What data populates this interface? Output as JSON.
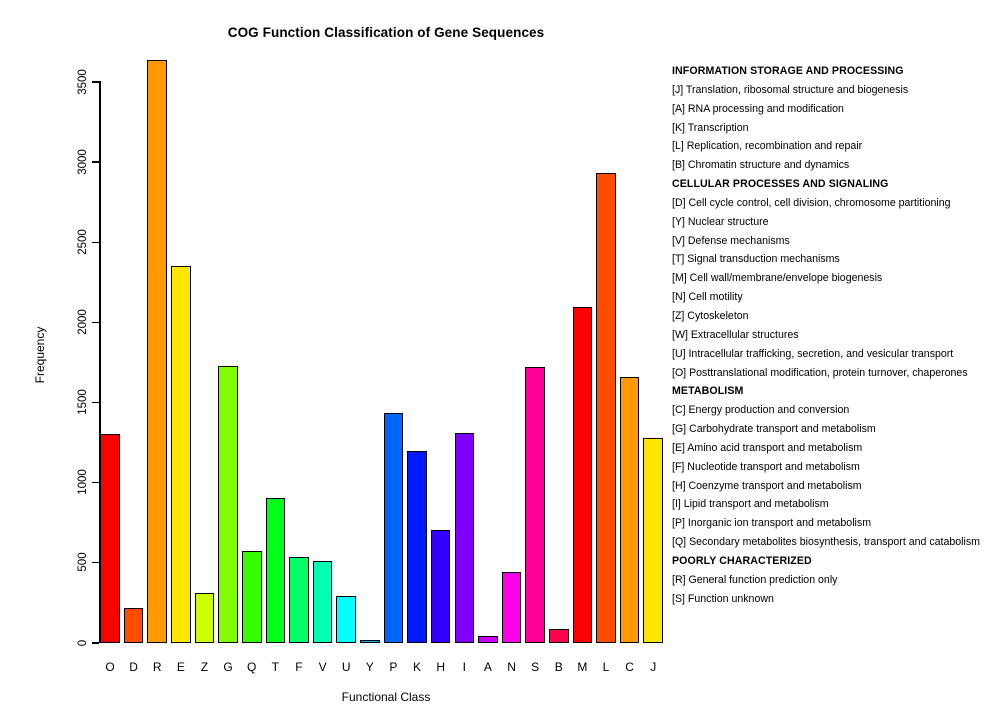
{
  "title": "COG Function Classification of Gene Sequences",
  "chart_data": {
    "type": "bar",
    "title": "COG Function Classification of Gene Sequences",
    "xlabel": "Functional Class",
    "ylabel": "Frequency",
    "ylim": [
      0,
      3500
    ],
    "yticks": [
      0,
      500,
      1000,
      1500,
      2000,
      2500,
      3000,
      3500
    ],
    "grid": "off",
    "legend_position": "right",
    "categories": [
      "O",
      "D",
      "R",
      "E",
      "Z",
      "G",
      "Q",
      "T",
      "F",
      "V",
      "U",
      "Y",
      "P",
      "K",
      "H",
      "I",
      "A",
      "N",
      "S",
      "B",
      "M",
      "L",
      "C",
      "J"
    ],
    "values": [
      1300,
      210,
      3630,
      2350,
      305,
      1725,
      570,
      900,
      530,
      505,
      290,
      10,
      1430,
      1190,
      700,
      1305,
      40,
      440,
      1715,
      80,
      2090,
      2930,
      1655,
      1275
    ],
    "bar_colors": [
      "#FF0000",
      "#FF4D00",
      "#FF9900",
      "#FFE600",
      "#CCFF00",
      "#80FF00",
      "#33FF00",
      "#00FF19",
      "#00FF66",
      "#00FFB2",
      "#00FFFF",
      "#00B3FF",
      "#0066FF",
      "#0019FF",
      "#3300FF",
      "#8000FF",
      "#CC00FF",
      "#FF00E6",
      "#FF0099",
      "#FF004D",
      "#FF0000",
      "#FF4D00",
      "#FF9900",
      "#FFE600"
    ]
  },
  "legend": {
    "sections": [
      {
        "header": "INFORMATION STORAGE AND PROCESSING",
        "items": [
          "[J] Translation, ribosomal structure and biogenesis",
          "[A] RNA processing and modification",
          "[K] Transcription",
          "[L] Replication, recombination and repair",
          "[B] Chromatin structure and dynamics"
        ]
      },
      {
        "header": "CELLULAR PROCESSES AND SIGNALING",
        "items": [
          "[D] Cell cycle control, cell division, chromosome partitioning",
          "[Y] Nuclear structure",
          "[V] Defense mechanisms",
          "[T] Signal transduction mechanisms",
          "[M] Cell wall/membrane/envelope biogenesis",
          "[N] Cell motility",
          "[Z] Cytoskeleton",
          "[W] Extracellular structures",
          "[U] Intracellular trafficking, secretion, and vesicular transport",
          "[O] Posttranslational modification, protein turnover, chaperones"
        ]
      },
      {
        "header": "METABOLISM",
        "items": [
          "[C] Energy production and conversion",
          "[G] Carbohydrate transport and metabolism",
          "[E] Amino acid transport and metabolism",
          "[F] Nucleotide transport and metabolism",
          "[H] Coenzyme transport and metabolism",
          "[I] Lipid transport and metabolism",
          "[P] Inorganic ion transport and metabolism",
          "[Q] Secondary metabolites biosynthesis, transport and catabolism"
        ]
      },
      {
        "header": "POORLY CHARACTERIZED",
        "items": [
          "[R] General function prediction only",
          "[S] Function unknown"
        ]
      }
    ]
  }
}
